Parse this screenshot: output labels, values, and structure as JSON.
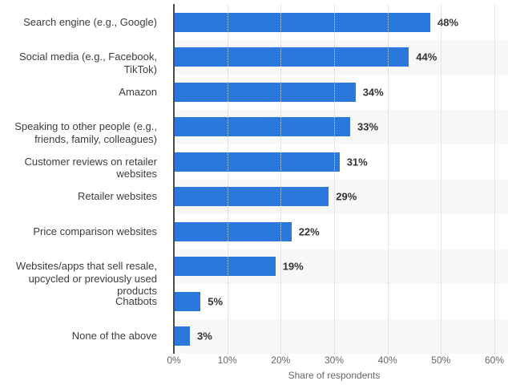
{
  "chart_data": {
    "type": "bar",
    "orientation": "horizontal",
    "title": "",
    "xlabel": "Share of respondents",
    "ylabel": "",
    "xlim": [
      0,
      60
    ],
    "grid": "vertical-dotted",
    "legend": "none",
    "categories": [
      "Search engine (e.g., Google)",
      "Social media (e.g., Facebook, TikTok)",
      "Amazon",
      "Speaking to other people (e.g., friends, family, colleagues)",
      "Customer reviews on retailer websites",
      "Retailer websites",
      "Price comparison websites",
      "Websites/apps that sell resale, upcycled or previously used products",
      "Chatbots",
      "None of the above"
    ],
    "category_lines": [
      [
        "Search engine (e.g., Google)"
      ],
      [
        "Social media (e.g., Facebook,",
        "TikTok)"
      ],
      [
        "Amazon"
      ],
      [
        "Speaking to other people (e.g.,",
        "friends, family, colleagues)"
      ],
      [
        "Customer reviews on retailer",
        "websites"
      ],
      [
        "Retailer websites"
      ],
      [
        "Price comparison websites"
      ],
      [
        "Websites/apps that sell resale,",
        "upcycled or previously used",
        "products"
      ],
      [
        "Chatbots"
      ],
      [
        "None of the above"
      ]
    ],
    "values": [
      48,
      44,
      34,
      33,
      31,
      29,
      22,
      19,
      5,
      3
    ],
    "value_labels": [
      "48%",
      "44%",
      "34%",
      "33%",
      "31%",
      "29%",
      "22%",
      "19%",
      "5%",
      "3%"
    ],
    "x_ticks": [
      "0%",
      "10%",
      "20%",
      "30%",
      "40%",
      "50%",
      "60%"
    ],
    "colors": {
      "bar": "#2B78DC",
      "stripe": "#F7F7F7",
      "gridline": "#CFCFCF",
      "axis_line": "#4A4A4A",
      "category_text": "#3D3D3D",
      "value_text": "#333333",
      "tick_text": "#666666"
    }
  }
}
